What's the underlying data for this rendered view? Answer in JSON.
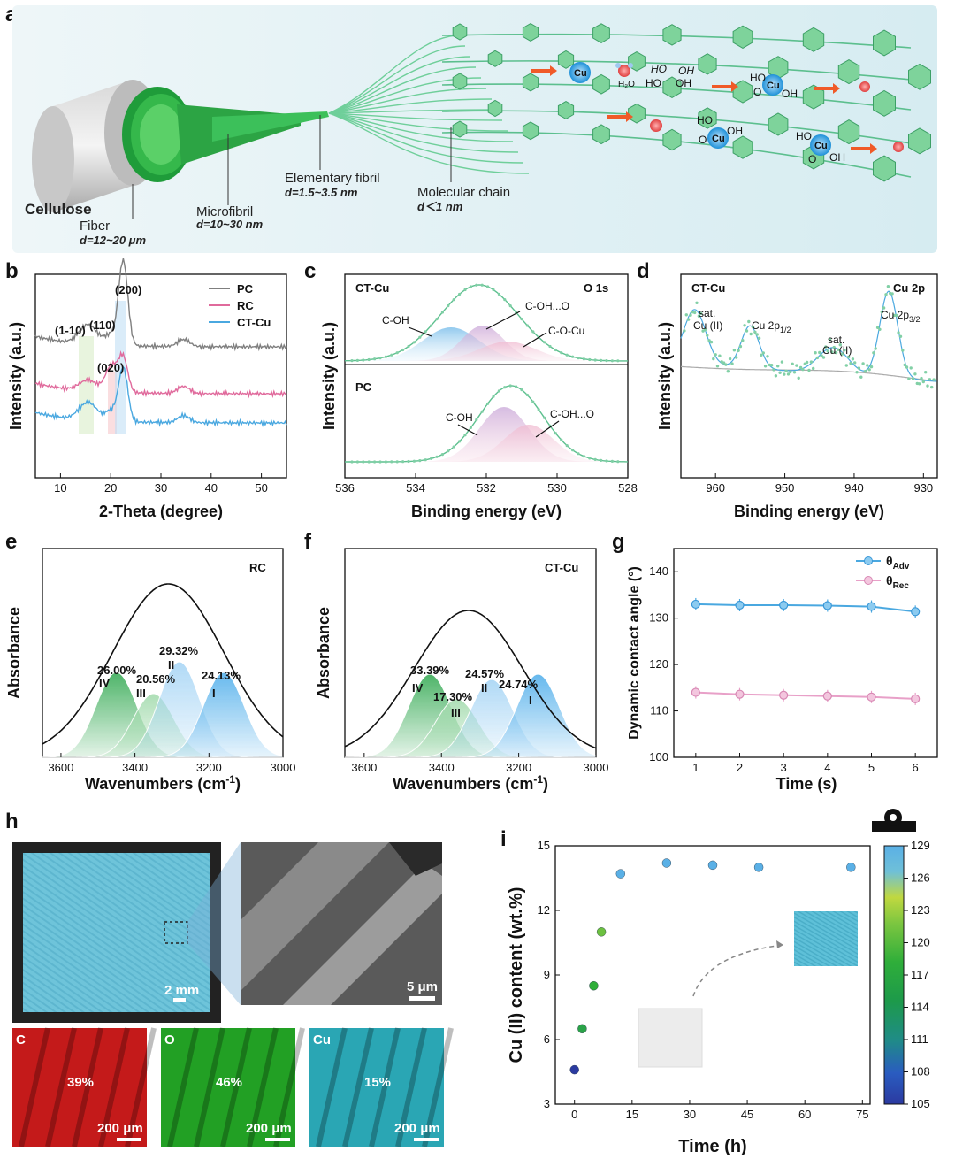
{
  "panels": {
    "a": "a",
    "b": "b",
    "c": "c",
    "d": "d",
    "e": "e",
    "f": "f",
    "g": "g",
    "h": "h",
    "i": "i"
  },
  "schematic": {
    "cellulose": "Cellulose",
    "fiber": "Fiber",
    "fiber_d": "d=12~20 μm",
    "microfibril": "Microfibril",
    "microfibril_d": "d=10~30 nm",
    "elementary": "Elementary fibril",
    "elementary_d": "d=1.5~3.5 nm",
    "molecular": "Molecular chain",
    "molecular_d": "d＜1 nm",
    "cu": "Cu",
    "water": "H₂O",
    "ho": "HO",
    "oh": "OH",
    "o": "O",
    "colors": {
      "chain": "#5cbf8e",
      "hex": "#6fc98d",
      "cu": "#2a9fe0",
      "arrow": "#f05a28",
      "fiber": "#2db34a"
    }
  },
  "chart_data": [
    {
      "id": "b",
      "type": "line",
      "title": "",
      "xlabel": "2-Theta (degree)",
      "ylabel": "Intensity (a.u.)",
      "xlim": [
        5,
        55
      ],
      "xticks": [
        10,
        20,
        30,
        40,
        50
      ],
      "series": [
        {
          "name": "PC",
          "color": "#7f7f7f"
        },
        {
          "name": "RC",
          "color": "#e06a9c"
        },
        {
          "name": "CT-Cu",
          "color": "#4aa8e0"
        }
      ],
      "annotations": [
        "(200)",
        "(1-10)",
        "(110)",
        "(020)"
      ]
    },
    {
      "id": "c",
      "type": "line",
      "xlabel": "Binding energy (eV)",
      "ylabel": "Intensity (a.u.)",
      "xlim": [
        536,
        528
      ],
      "xticks": [
        536,
        534,
        532,
        530,
        528
      ],
      "top": {
        "sample": "CT-Cu",
        "region": "O 1s",
        "peaks": [
          "C-OH",
          "C-OH...O",
          "C-O-Cu"
        ]
      },
      "bottom": {
        "sample": "PC",
        "peaks": [
          "C-OH",
          "C-OH...O"
        ]
      }
    },
    {
      "id": "d",
      "type": "line",
      "xlabel": "Binding energy (eV)",
      "ylabel": "Intensity (a.u.)",
      "xlim": [
        965,
        928
      ],
      "xticks": [
        960,
        950,
        940,
        930
      ],
      "sample": "CT-Cu",
      "region": "Cu 2p",
      "peaks": [
        "sat.",
        "Cu (II)",
        "Cu 2p",
        "1/2",
        "3/2"
      ]
    },
    {
      "id": "e",
      "type": "area",
      "sample": "RC",
      "xlabel": "Wavenumbers (cm",
      "xlabel_sup": "-1",
      "xlabel_end": ")",
      "ylabel": "Absorbance",
      "xlim": [
        3650,
        3000
      ],
      "xticks": [
        3600,
        3400,
        3200,
        3000
      ],
      "peaks": [
        {
          "label": "IV",
          "pct": "26.00%",
          "center": 3450
        },
        {
          "label": "III",
          "pct": "20.56%",
          "center": 3350
        },
        {
          "label": "II",
          "pct": "29.32%",
          "center": 3280
        },
        {
          "label": "I",
          "pct": "24.13%",
          "center": 3160
        }
      ]
    },
    {
      "id": "f",
      "type": "area",
      "sample": "CT-Cu",
      "xlabel": "Wavenumbers (cm",
      "xlabel_sup": "-1",
      "xlabel_end": ")",
      "ylabel": "Absorbance",
      "xlim": [
        3650,
        3000
      ],
      "xticks": [
        3600,
        3400,
        3200,
        3000
      ],
      "peaks": [
        {
          "label": "IV",
          "pct": "33.39%",
          "center": 3430
        },
        {
          "label": "III",
          "pct": "17.30%",
          "center": 3360
        },
        {
          "label": "II",
          "pct": "24.57%",
          "center": 3270
        },
        {
          "label": "I",
          "pct": "24.74%",
          "center": 3150
        }
      ]
    },
    {
      "id": "g",
      "type": "line",
      "xlabel": "Time (s)",
      "ylabel": "Dynamic contact angle (°)",
      "xlim": [
        0.5,
        6.5
      ],
      "ylim": [
        100,
        145
      ],
      "xticks": [
        1,
        2,
        3,
        4,
        5,
        6
      ],
      "yticks": [
        100,
        110,
        120,
        130,
        140
      ],
      "x": [
        1,
        2,
        3,
        4,
        5,
        6
      ],
      "series": [
        {
          "name": "θ",
          "sub": "Adv",
          "color": "#4aa8e0",
          "values": [
            133.0,
            132.8,
            132.8,
            132.7,
            132.5,
            131.4
          ]
        },
        {
          "name": "θ",
          "sub": "Rec",
          "color": "#e8a0c8",
          "values": [
            114.0,
            113.6,
            113.4,
            113.2,
            113.0,
            112.6
          ]
        }
      ]
    },
    {
      "id": "i",
      "type": "scatter",
      "xlabel": "Time (h)",
      "ylabel": "Cu (II) content (wt.%)",
      "xlim": [
        -5,
        77
      ],
      "ylim": [
        3,
        15
      ],
      "xticks": [
        0,
        15,
        30,
        45,
        60,
        75
      ],
      "yticks": [
        3,
        6,
        9,
        12,
        15
      ],
      "x": [
        0,
        2,
        5,
        7,
        12,
        24,
        36,
        48,
        72
      ],
      "values": [
        4.6,
        6.5,
        8.5,
        11.0,
        13.7,
        14.2,
        14.1,
        14.0,
        14.0
      ],
      "colorbar": {
        "min": 105,
        "max": 129,
        "ticks": [
          105,
          108,
          111,
          114,
          117,
          120,
          123,
          126,
          129
        ]
      }
    }
  ],
  "panel_h": {
    "scale_main": "2 mm",
    "scale_sem": "5 μm",
    "maps": [
      {
        "el": "C",
        "pct": "39%",
        "scale": "200 μm",
        "color": "#c41a1a"
      },
      {
        "el": "O",
        "pct": "46%",
        "scale": "200 μm",
        "color": "#22a024"
      },
      {
        "el": "Cu",
        "pct": "15%",
        "scale": "200 μm",
        "color": "#2aa6b4"
      }
    ]
  }
}
